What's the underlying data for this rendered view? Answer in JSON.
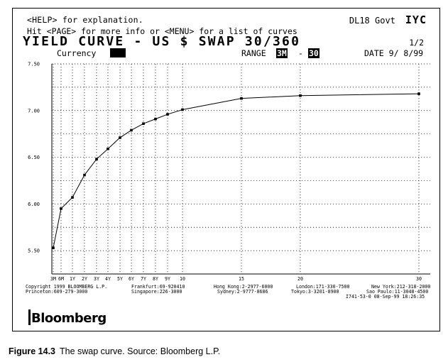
{
  "header": {
    "help_text": "<HELP> for explanation.",
    "source_code": "DL18 Govt",
    "function_code": "IYC",
    "page_text": "Hit <PAGE> for more info or <MENU> for a list of curves",
    "title": "YIELD CURVE - US $ SWAP 30/360",
    "page_number": "1/2"
  },
  "controls": {
    "currency_label": "Currency",
    "range_label": "RANGE",
    "range_from": "3M",
    "range_separator": "-",
    "range_to": "30",
    "date_label": "DATE",
    "date_value": "9/ 8/99"
  },
  "chart_data": {
    "type": "line",
    "title": "",
    "xlabel": "",
    "ylabel": "",
    "ylim": [
      5.25,
      7.5
    ],
    "grid": true,
    "y_ticks": [
      "5.50",
      "6.00",
      "6.50",
      "7.00",
      "7.50"
    ],
    "categories": [
      "3M",
      "6M",
      "1Y",
      "2Y",
      "3Y",
      "4Y",
      "5Y",
      "6Y",
      "7Y",
      "8Y",
      "9Y",
      "10",
      "15",
      "20",
      "30"
    ],
    "series": [
      {
        "values": [
          5.53,
          5.95,
          6.07,
          6.31,
          6.48,
          6.59,
          6.71,
          6.79,
          6.86,
          6.91,
          6.96,
          7.01,
          7.13,
          7.16,
          7.18
        ]
      }
    ]
  },
  "footer": {
    "row1": [
      "Copyright 1999 BLOOMBERG L.P.",
      "Frankfurt:69-920410",
      "Hong Kong:2-2977-6000",
      "London:171-330-7500",
      "New York:212-318-2000"
    ],
    "row2": [
      "Princeton:609-279-3000",
      "Singapore:226-3000",
      "Sydney:2-9777-8686",
      "Tokyo:3-3201-8900",
      "Sao Paulo:11-3048-4500"
    ],
    "row3": "I741-53-0 08-Sep-99 18:26:35",
    "logo": "Bloomberg"
  },
  "caption": {
    "label": "Figure 14.3",
    "text": "The swap curve. Source: Bloomberg L.P."
  }
}
